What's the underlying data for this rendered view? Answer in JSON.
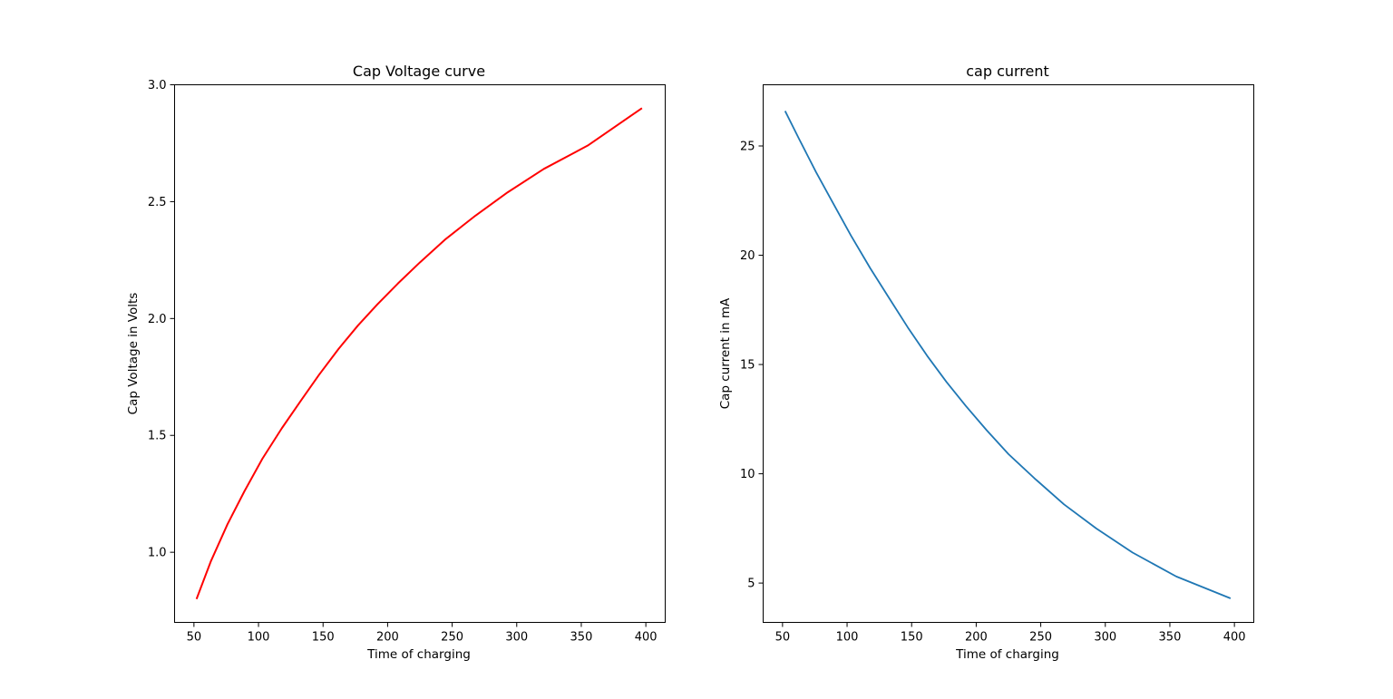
{
  "chart_data": [
    {
      "type": "line",
      "title": "Cap Voltage curve",
      "xlabel": "Time of charging",
      "ylabel": "Cap Voltage in Volts",
      "xlim": [
        35,
        415
      ],
      "ylim": [
        0.7,
        3.0
      ],
      "xticks": [
        50,
        100,
        150,
        200,
        250,
        300,
        350,
        400
      ],
      "yticks": [
        1.0,
        1.5,
        2.0,
        2.5,
        3.0
      ],
      "xtick_labels": [
        "50",
        "100",
        "150",
        "200",
        "250",
        "300",
        "350",
        "400"
      ],
      "ytick_labels": [
        "1.0",
        "1.5",
        "2.0",
        "2.5",
        "3.0"
      ],
      "grid": false,
      "color": "#ff0000",
      "x": [
        52,
        63,
        76,
        89,
        103,
        118,
        133,
        147,
        162,
        177,
        192,
        208,
        225,
        245,
        268,
        293,
        321,
        355,
        397
      ],
      "y": [
        0.8,
        0.96,
        1.12,
        1.26,
        1.4,
        1.53,
        1.65,
        1.76,
        1.87,
        1.97,
        2.06,
        2.15,
        2.24,
        2.34,
        2.44,
        2.54,
        2.64,
        2.74,
        2.9
      ]
    },
    {
      "type": "line",
      "title": "cap current",
      "xlabel": "Time of charging",
      "ylabel": "Cap current in mA",
      "xlim": [
        35,
        415
      ],
      "ylim": [
        3.2,
        27.8
      ],
      "xticks": [
        50,
        100,
        150,
        200,
        250,
        300,
        350,
        400
      ],
      "yticks": [
        5,
        10,
        15,
        20,
        25
      ],
      "xtick_labels": [
        "50",
        "100",
        "150",
        "200",
        "250",
        "300",
        "350",
        "400"
      ],
      "ytick_labels": [
        "5",
        "10",
        "15",
        "20",
        "25"
      ],
      "grid": false,
      "color": "#1f77b4",
      "x": [
        52,
        63,
        76,
        89,
        103,
        118,
        133,
        147,
        162,
        177,
        192,
        208,
        225,
        245,
        268,
        293,
        321,
        355,
        397
      ],
      "y": [
        26.6,
        25.3,
        23.8,
        22.4,
        20.9,
        19.4,
        18.0,
        16.7,
        15.4,
        14.2,
        13.1,
        12.0,
        10.9,
        9.8,
        8.6,
        7.5,
        6.4,
        5.3,
        4.3
      ]
    }
  ]
}
